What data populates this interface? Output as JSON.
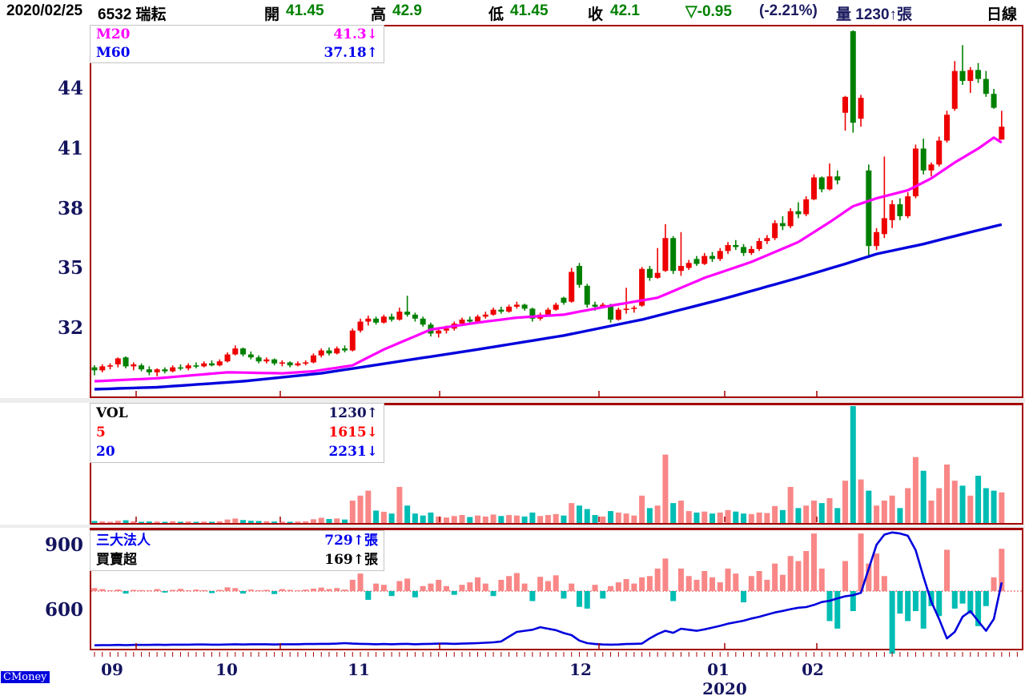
{
  "header": {
    "date": "2020/02/25",
    "symbol": "6532 瑞耘",
    "open_label": "開",
    "open": "41.45",
    "high_label": "高",
    "high": "42.9",
    "low_label": "低",
    "low": "41.45",
    "close_label": "收",
    "close": "42.1",
    "change": "▽-0.95",
    "change_pct": "(-2.21%)",
    "volume_text": "量 1230↑張",
    "period": "日線"
  },
  "legends": {
    "price": {
      "rows": [
        {
          "label": "M20",
          "value": "41.3↓"
        },
        {
          "label": "M60",
          "value": "37.18↑"
        }
      ]
    },
    "volume": {
      "rows": [
        {
          "label": "VOL",
          "value": "1230↑"
        },
        {
          "label": "5",
          "value": "1615↓"
        },
        {
          "label": "20",
          "value": "2231↓"
        }
      ]
    },
    "institutional": {
      "rows": [
        {
          "label": "三大法人",
          "value": "729↑張"
        },
        {
          "label": "買賣超",
          "value": "169↑張"
        }
      ]
    }
  },
  "watermark": "CMoney",
  "chart_data": {
    "type": "candlestick",
    "title": "6532 瑞耘 日線",
    "price_axis_ticks": [
      "44",
      "41",
      "38",
      "35",
      "32"
    ],
    "inst_axis_ticks": [
      "900",
      "600"
    ],
    "x_months": [
      "09",
      "10",
      "11",
      "12",
      "01",
      "02"
    ],
    "year": "2020",
    "price_ylim": [
      28.5,
      47.3
    ],
    "volume_ylim": [
      0,
      4700
    ],
    "inst_line_range_note": "left axis 600/900 refers to blue cumulative line",
    "colors": {
      "up": "#ee0000",
      "down": "#008000",
      "vol_up": "#f98787",
      "vol_down": "#00bdb4",
      "m20": "#ff00ff",
      "m60": "#0000dd",
      "inst_line": "#0000dd",
      "border": "#a40000",
      "zero_line": "#d40000"
    },
    "candles": [
      [
        30.0,
        30.1,
        29.6,
        29.85
      ],
      [
        29.85,
        30.15,
        29.75,
        30.05
      ],
      [
        30.05,
        30.2,
        29.9,
        30.1
      ],
      [
        30.15,
        30.5,
        30.0,
        30.45
      ],
      [
        30.5,
        30.55,
        29.95,
        30.05
      ],
      [
        30.05,
        30.25,
        29.85,
        30.15
      ],
      [
        30.1,
        30.2,
        29.8,
        29.9
      ],
      [
        29.9,
        30.05,
        29.6,
        29.75
      ],
      [
        29.75,
        29.95,
        29.55,
        29.9
      ],
      [
        29.9,
        30.0,
        29.7,
        29.8
      ],
      [
        29.8,
        30.1,
        29.75,
        30.0
      ],
      [
        30.0,
        30.15,
        29.85,
        29.95
      ],
      [
        29.95,
        30.2,
        29.85,
        30.1
      ],
      [
        30.1,
        30.25,
        29.95,
        30.05
      ],
      [
        30.05,
        30.3,
        30.0,
        30.2
      ],
      [
        30.2,
        30.35,
        30.05,
        30.1
      ],
      [
        30.1,
        30.4,
        30.05,
        30.3
      ],
      [
        30.3,
        30.75,
        30.25,
        30.65
      ],
      [
        30.65,
        31.1,
        30.6,
        30.95
      ],
      [
        30.95,
        31.0,
        30.55,
        30.65
      ],
      [
        30.65,
        30.8,
        30.4,
        30.5
      ],
      [
        30.5,
        30.6,
        30.2,
        30.3
      ],
      [
        30.3,
        30.5,
        30.2,
        30.4
      ],
      [
        30.4,
        30.45,
        30.1,
        30.2
      ],
      [
        30.2,
        30.35,
        30.05,
        30.25
      ],
      [
        30.25,
        30.3,
        30.0,
        30.1
      ],
      [
        30.1,
        30.3,
        30.05,
        30.2
      ],
      [
        30.2,
        30.35,
        30.1,
        30.25
      ],
      [
        30.25,
        30.7,
        30.2,
        30.6
      ],
      [
        30.6,
        30.95,
        30.5,
        30.85
      ],
      [
        30.85,
        31.0,
        30.6,
        30.7
      ],
      [
        30.7,
        31.05,
        30.65,
        30.95
      ],
      [
        30.95,
        31.1,
        30.75,
        30.85
      ],
      [
        30.85,
        31.95,
        30.8,
        31.85
      ],
      [
        31.85,
        32.45,
        31.75,
        32.3
      ],
      [
        32.3,
        32.6,
        32.1,
        32.45
      ],
      [
        32.45,
        32.55,
        32.15,
        32.25
      ],
      [
        32.25,
        32.65,
        32.2,
        32.55
      ],
      [
        32.55,
        32.7,
        32.3,
        32.4
      ],
      [
        32.4,
        33.0,
        32.35,
        32.8
      ],
      [
        32.8,
        33.6,
        32.55,
        32.65
      ],
      [
        32.65,
        32.75,
        32.3,
        32.45
      ],
      [
        32.45,
        32.55,
        32.05,
        32.15
      ],
      [
        32.15,
        32.25,
        31.55,
        31.7
      ],
      [
        31.7,
        31.95,
        31.5,
        31.85
      ],
      [
        31.85,
        32.1,
        31.7,
        31.95
      ],
      [
        31.95,
        32.3,
        31.85,
        32.2
      ],
      [
        32.2,
        32.5,
        32.1,
        32.4
      ],
      [
        32.4,
        32.55,
        32.2,
        32.3
      ],
      [
        32.3,
        32.65,
        32.25,
        32.55
      ],
      [
        32.55,
        32.8,
        32.45,
        32.65
      ],
      [
        32.65,
        33.0,
        32.6,
        32.9
      ],
      [
        32.9,
        33.05,
        32.7,
        32.8
      ],
      [
        32.8,
        33.15,
        32.75,
        33.05
      ],
      [
        33.05,
        33.3,
        32.95,
        33.15
      ],
      [
        33.15,
        33.2,
        32.85,
        32.95
      ],
      [
        32.95,
        33.0,
        32.3,
        32.45
      ],
      [
        32.45,
        32.75,
        32.35,
        32.65
      ],
      [
        32.65,
        33.0,
        32.6,
        32.9
      ],
      [
        32.9,
        33.25,
        32.85,
        33.15
      ],
      [
        33.5,
        33.55,
        33.15,
        33.25
      ],
      [
        33.3,
        35.0,
        33.25,
        34.8
      ],
      [
        35.1,
        35.25,
        34.0,
        34.15
      ],
      [
        34.1,
        34.2,
        33.0,
        33.15
      ],
      [
        33.15,
        33.3,
        32.85,
        33.05
      ],
      [
        33.05,
        33.25,
        33.0,
        33.15
      ],
      [
        33.1,
        33.2,
        32.25,
        32.4
      ],
      [
        32.4,
        33.0,
        32.35,
        32.9
      ],
      [
        32.9,
        34.0,
        32.7,
        32.95
      ],
      [
        32.95,
        33.1,
        32.75,
        33.0
      ],
      [
        33.1,
        35.05,
        33.05,
        34.95
      ],
      [
        34.95,
        35.1,
        34.35,
        34.5
      ],
      [
        34.5,
        36.0,
        34.45,
        34.75
      ],
      [
        34.85,
        37.2,
        34.8,
        36.5
      ],
      [
        36.5,
        36.6,
        34.7,
        34.85
      ],
      [
        34.85,
        36.8,
        34.6,
        35.1
      ],
      [
        35.0,
        35.4,
        34.9,
        35.25
      ],
      [
        35.45,
        35.6,
        35.1,
        35.2
      ],
      [
        35.2,
        35.75,
        35.15,
        35.6
      ],
      [
        35.6,
        35.8,
        35.3,
        35.45
      ],
      [
        35.45,
        36.0,
        35.35,
        35.85
      ],
      [
        35.85,
        36.3,
        35.7,
        36.15
      ],
      [
        36.15,
        36.4,
        35.9,
        36.05
      ],
      [
        36.05,
        36.2,
        35.6,
        35.75
      ],
      [
        35.75,
        36.1,
        35.65,
        35.95
      ],
      [
        35.95,
        36.5,
        35.85,
        36.35
      ],
      [
        36.35,
        36.65,
        36.2,
        36.5
      ],
      [
        36.5,
        37.4,
        36.4,
        37.25
      ],
      [
        37.25,
        37.6,
        36.9,
        37.1
      ],
      [
        37.1,
        38.0,
        37.0,
        37.85
      ],
      [
        37.85,
        38.3,
        37.5,
        37.7
      ],
      [
        37.7,
        38.6,
        37.6,
        38.45
      ],
      [
        38.45,
        39.7,
        38.4,
        39.55
      ],
      [
        39.55,
        39.6,
        38.8,
        38.95
      ],
      [
        38.95,
        40.25,
        38.9,
        39.6
      ],
      [
        39.6,
        39.9,
        39.2,
        39.4
      ],
      [
        42.8,
        43.65,
        41.9,
        43.6
      ],
      [
        46.9,
        46.95,
        41.8,
        42.3
      ],
      [
        42.5,
        43.7,
        42.1,
        43.55
      ],
      [
        39.9,
        40.2,
        35.5,
        36.1
      ],
      [
        36.1,
        37.0,
        35.9,
        36.8
      ],
      [
        36.7,
        40.6,
        36.5,
        37.5
      ],
      [
        37.4,
        38.4,
        37.0,
        38.2
      ],
      [
        38.2,
        38.5,
        37.4,
        37.6
      ],
      [
        37.6,
        38.8,
        37.5,
        38.6
      ],
      [
        38.6,
        41.2,
        38.5,
        41.0
      ],
      [
        41.0,
        41.5,
        39.7,
        39.9
      ],
      [
        39.9,
        40.3,
        39.6,
        40.2
      ],
      [
        40.2,
        41.6,
        40.1,
        41.4
      ],
      [
        41.4,
        42.9,
        41.3,
        42.7
      ],
      [
        43.0,
        45.4,
        42.9,
        44.9
      ],
      [
        44.9,
        46.2,
        44.2,
        44.4
      ],
      [
        44.4,
        45.1,
        43.8,
        44.95
      ],
      [
        44.95,
        45.3,
        44.3,
        44.5
      ],
      [
        44.5,
        44.9,
        43.6,
        43.75
      ],
      [
        43.75,
        44.0,
        43.0,
        43.05
      ],
      [
        41.45,
        42.9,
        41.45,
        42.1
      ]
    ],
    "volume": [
      80,
      60,
      50,
      90,
      110,
      70,
      50,
      60,
      55,
      45,
      70,
      50,
      60,
      45,
      55,
      50,
      65,
      140,
      180,
      120,
      90,
      80,
      70,
      60,
      55,
      50,
      60,
      65,
      150,
      210,
      160,
      180,
      140,
      900,
      1100,
      1300,
      500,
      450,
      380,
      1450,
      700,
      380,
      300,
      420,
      260,
      220,
      280,
      320,
      240,
      300,
      260,
      340,
      280,
      320,
      300,
      260,
      420,
      280,
      320,
      360,
      300,
      800,
      700,
      560,
      320,
      260,
      480,
      420,
      380,
      300,
      1100,
      600,
      700,
      2750,
      800,
      900,
      480,
      420,
      460,
      380,
      420,
      520,
      460,
      380,
      360,
      420,
      400,
      680,
      520,
      1450,
      600,
      700,
      900,
      800,
      1000,
      600,
      1700,
      4700,
      1750,
      1300,
      700,
      900,
      1100,
      600,
      1400,
      2650,
      2100,
      900,
      1400,
      2350,
      1700,
      1500,
      1100,
      1900,
      1400,
      1300,
      1230
    ],
    "inst_net": [
      12,
      8,
      0,
      6,
      -10,
      5,
      4,
      0,
      8,
      -6,
      5,
      9,
      0,
      6,
      4,
      -8,
      5,
      15,
      12,
      -10,
      6,
      0,
      5,
      -12,
      8,
      5,
      0,
      6,
      10,
      14,
      8,
      12,
      6,
      45,
      70,
      -35,
      30,
      25,
      -20,
      40,
      50,
      -25,
      20,
      30,
      45,
      20,
      -15,
      25,
      35,
      55,
      30,
      -20,
      45,
      60,
      72,
      30,
      -40,
      57,
      40,
      63,
      -30,
      30,
      -63,
      -70,
      25,
      -30,
      20,
      35,
      48,
      30,
      55,
      60,
      90,
      130,
      -40,
      90,
      60,
      45,
      80,
      55,
      35,
      90,
      70,
      -45,
      60,
      80,
      45,
      110,
      65,
      140,
      120,
      160,
      230,
      90,
      -120,
      -150,
      120,
      -80,
      230,
      110,
      150,
      60,
      -250,
      -90,
      -120,
      -80,
      -150,
      -60,
      -100,
      165,
      -70,
      -50,
      -90,
      -140,
      -60,
      55,
      169
    ],
    "inst_cum": [
      438,
      439,
      439,
      440,
      439,
      440,
      440,
      440,
      441,
      440,
      441,
      441,
      441,
      442,
      442,
      441,
      441,
      442,
      443,
      442,
      443,
      443,
      443,
      442,
      443,
      443,
      443,
      444,
      444,
      445,
      445,
      446,
      448,
      446,
      445,
      444,
      443,
      444,
      443,
      444,
      445,
      443,
      444,
      445,
      446,
      446,
      445,
      446,
      447,
      448,
      450,
      452,
      456,
      478,
      500,
      505,
      510,
      522,
      515,
      508,
      495,
      485,
      460,
      448,
      444,
      442,
      441,
      442,
      444,
      445,
      446,
      470,
      490,
      505,
      496,
      515,
      510,
      505,
      512,
      520,
      528,
      538,
      545,
      552,
      562,
      570,
      580,
      590,
      597,
      605,
      612,
      615,
      625,
      638,
      644,
      655,
      665,
      670,
      681,
      792,
      903,
      950,
      960,
      955,
      945,
      878,
      755,
      640,
      560,
      470,
      500,
      570,
      596,
      550,
      505,
      560,
      729
    ],
    "m20_points": [
      [
        0,
        29.3
      ],
      [
        8,
        29.45
      ],
      [
        17,
        29.75
      ],
      [
        24,
        29.7
      ],
      [
        28,
        29.8
      ],
      [
        33,
        30.1
      ],
      [
        37,
        30.9
      ],
      [
        43,
        31.9
      ],
      [
        49,
        32.25
      ],
      [
        54,
        32.5
      ],
      [
        60,
        32.65
      ],
      [
        66,
        33.1
      ],
      [
        72,
        33.5
      ],
      [
        78,
        34.5
      ],
      [
        84,
        35.3
      ],
      [
        90,
        36.3
      ],
      [
        94,
        37.3
      ],
      [
        97,
        38.1
      ],
      [
        100,
        38.5
      ],
      [
        104,
        38.9
      ],
      [
        107,
        39.5
      ],
      [
        110,
        40.3
      ],
      [
        113,
        41.0
      ],
      [
        115,
        41.55
      ],
      [
        116,
        41.3
      ]
    ],
    "m60_points": [
      [
        0,
        28.9
      ],
      [
        8,
        29.0
      ],
      [
        19,
        29.3
      ],
      [
        29,
        29.7
      ],
      [
        39,
        30.3
      ],
      [
        49,
        30.9
      ],
      [
        60,
        31.6
      ],
      [
        70,
        32.4
      ],
      [
        80,
        33.4
      ],
      [
        90,
        34.5
      ],
      [
        96,
        35.2
      ],
      [
        100,
        35.7
      ],
      [
        106,
        36.2
      ],
      [
        111,
        36.7
      ],
      [
        116,
        37.18
      ]
    ],
    "month_tick_x": [
      170,
      350,
      549,
      748,
      905,
      1020
    ],
    "month_label_x": [
      140,
      283,
      448,
      725,
      897,
      1015
    ],
    "year_label_x": 905
  }
}
